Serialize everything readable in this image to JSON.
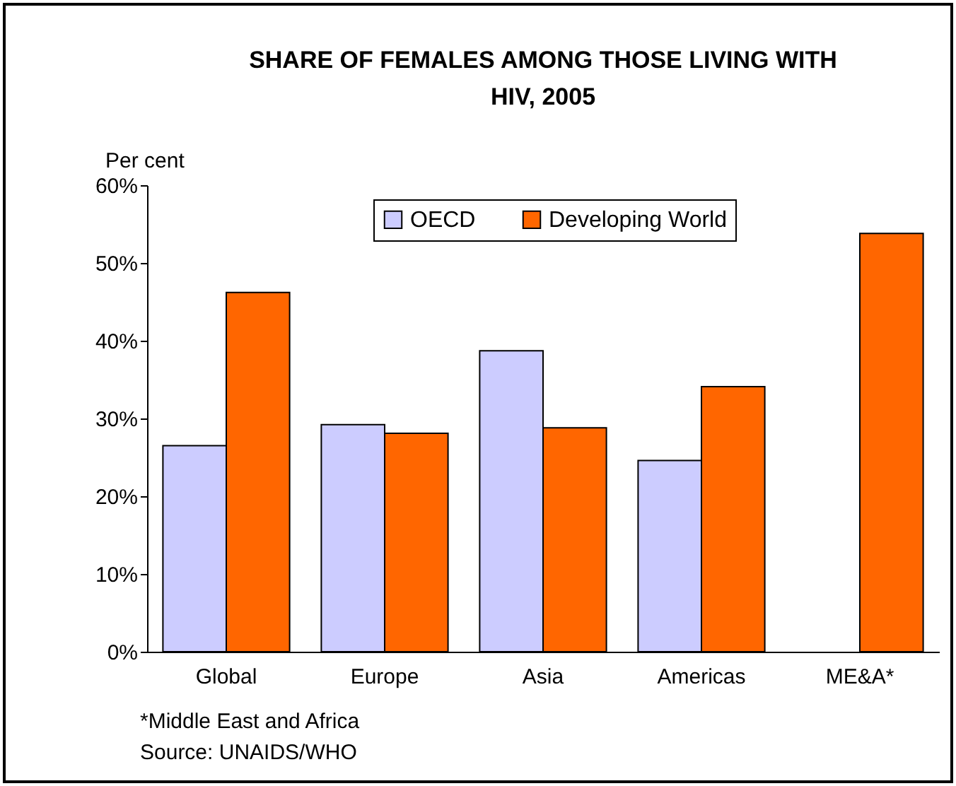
{
  "chart_data": {
    "type": "bar",
    "title": "SHARE OF FEMALES AMONG THOSE LIVING WITH HIV, 2005",
    "ylabel": "Per cent",
    "categories": [
      "Global",
      "Europe",
      "Asia",
      "Americas",
      "ME&A*"
    ],
    "series": [
      {
        "name": "OECD",
        "color": "#ccccff",
        "values": [
          26.5,
          29.2,
          38.7,
          24.6,
          null
        ]
      },
      {
        "name": "Developing World",
        "color": "#ff6600",
        "values": [
          46.2,
          28.1,
          28.8,
          34.1,
          53.8
        ]
      }
    ],
    "ylim": [
      0,
      60
    ],
    "yticks": [
      {
        "value": 0,
        "label": "0%"
      },
      {
        "value": 10,
        "label": "10%"
      },
      {
        "value": 20,
        "label": "20%"
      },
      {
        "value": 30,
        "label": "30%"
      },
      {
        "value": 40,
        "label": "40%"
      },
      {
        "value": 50,
        "label": "50%"
      },
      {
        "value": 60,
        "label": "60%"
      }
    ],
    "grid": false,
    "legend": "top",
    "annotations": [
      "*Middle East and Africa",
      "Source: UNAIDS/WHO"
    ]
  }
}
